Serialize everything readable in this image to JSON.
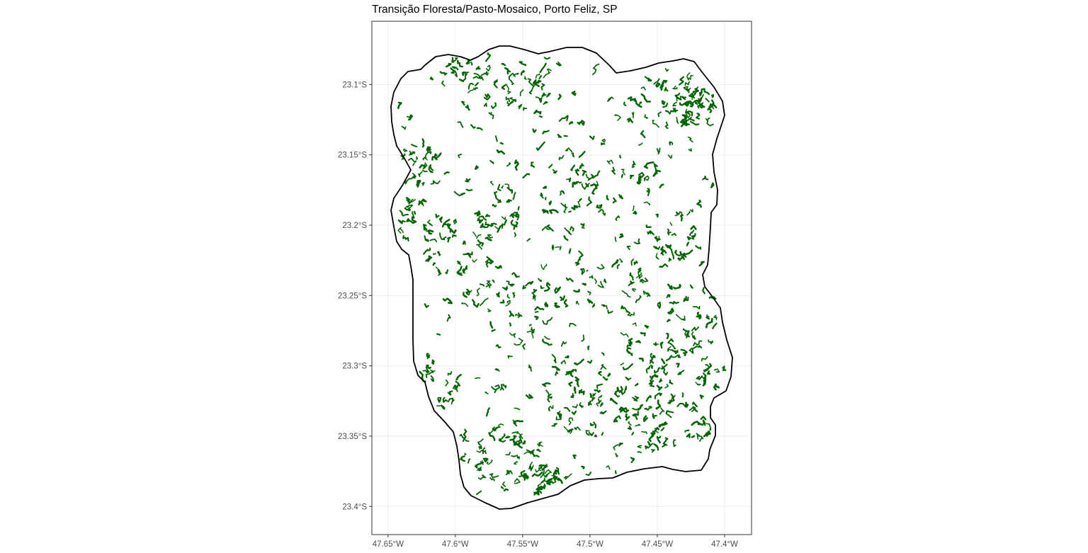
{
  "map": {
    "title": "Transição Floresta/Pasto-Mosaico, Porto Feliz, SP",
    "colors": {
      "background": "#ffffff",
      "panel_border": "#333333",
      "grid": "#ebebeb",
      "boundary": "#000000",
      "forest_patch": "#006400",
      "tick_label": "#4d4d4d"
    },
    "x_axis": {
      "ticks": [
        {
          "value": -47.65,
          "label": "47.65°W"
        },
        {
          "value": -47.6,
          "label": "47.6°W"
        },
        {
          "value": -47.55,
          "label": "47.55°W"
        },
        {
          "value": -47.5,
          "label": "47.5°W"
        },
        {
          "value": -47.45,
          "label": "47.45°W"
        },
        {
          "value": -47.4,
          "label": "47.4°W"
        }
      ],
      "range": [
        -47.662,
        -47.38
      ]
    },
    "y_axis": {
      "ticks": [
        {
          "value": -23.1,
          "label": "23.1°S"
        },
        {
          "value": -23.15,
          "label": "23.15°S"
        },
        {
          "value": -23.2,
          "label": "23.2°S"
        },
        {
          "value": -23.25,
          "label": "23.25°S"
        },
        {
          "value": -23.3,
          "label": "23.3°S"
        },
        {
          "value": -23.35,
          "label": "23.35°S"
        },
        {
          "value": -23.4,
          "label": "23.4°S"
        }
      ],
      "range": [
        -23.42,
        -23.055
      ]
    },
    "grid": true,
    "legend": "none"
  }
}
